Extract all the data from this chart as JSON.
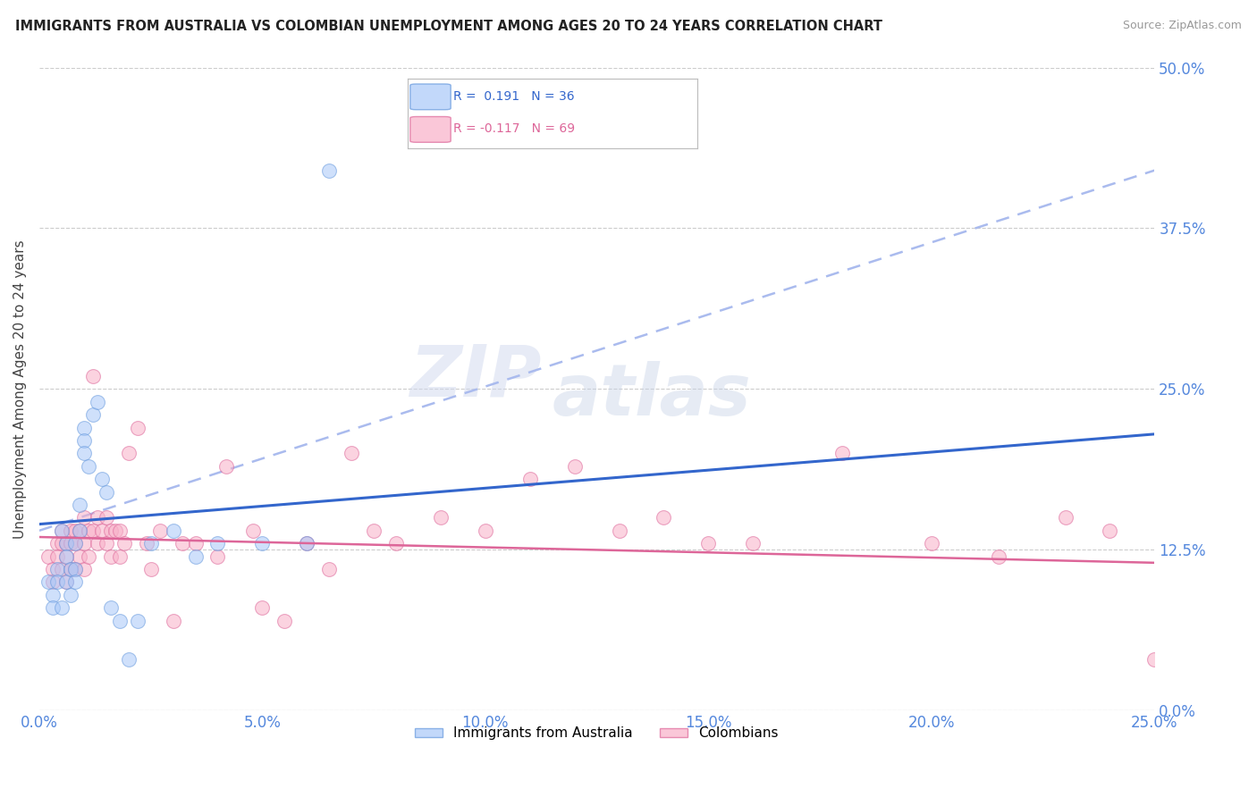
{
  "title": "IMMIGRANTS FROM AUSTRALIA VS COLOMBIAN UNEMPLOYMENT AMONG AGES 20 TO 24 YEARS CORRELATION CHART",
  "source": "Source: ZipAtlas.com",
  "ylabel": "Unemployment Among Ages 20 to 24 years",
  "xlim": [
    0.0,
    0.25
  ],
  "ylim": [
    0.0,
    0.5
  ],
  "watermark": "ZIPatlas",
  "blue_color": "#a8c8f8",
  "blue_color_edge": "#6699dd",
  "pink_color": "#f8b0c8",
  "pink_color_edge": "#dd6699",
  "trendline_blue_color": "#3366cc",
  "trendline_pink_color": "#dd6699",
  "trendline_dashed_color": "#aabbee",
  "axis_tick_color": "#5588dd",
  "grid_color": "#cccccc",
  "background_color": "#ffffff",
  "blue_trendline_x0": 0.0,
  "blue_trendline_y0": 0.145,
  "blue_trendline_x1": 0.25,
  "blue_trendline_y1": 0.215,
  "pink_trendline_x0": 0.0,
  "pink_trendline_y0": 0.135,
  "pink_trendline_x1": 0.25,
  "pink_trendline_y1": 0.115,
  "dashed_trendline_x0": 0.0,
  "dashed_trendline_y0": 0.14,
  "dashed_trendline_x1": 0.25,
  "dashed_trendline_y1": 0.42,
  "australia_scatter_x": [
    0.002,
    0.003,
    0.003,
    0.004,
    0.004,
    0.005,
    0.005,
    0.006,
    0.006,
    0.006,
    0.007,
    0.007,
    0.008,
    0.008,
    0.008,
    0.009,
    0.009,
    0.01,
    0.01,
    0.01,
    0.011,
    0.012,
    0.013,
    0.014,
    0.015,
    0.016,
    0.018,
    0.02,
    0.022,
    0.025,
    0.03,
    0.035,
    0.04,
    0.05,
    0.06,
    0.065
  ],
  "australia_scatter_y": [
    0.1,
    0.09,
    0.08,
    0.11,
    0.1,
    0.14,
    0.08,
    0.13,
    0.12,
    0.1,
    0.11,
    0.09,
    0.13,
    0.11,
    0.1,
    0.14,
    0.16,
    0.22,
    0.21,
    0.2,
    0.19,
    0.23,
    0.24,
    0.18,
    0.17,
    0.08,
    0.07,
    0.04,
    0.07,
    0.13,
    0.14,
    0.12,
    0.13,
    0.13,
    0.13,
    0.42
  ],
  "colombia_scatter_x": [
    0.002,
    0.003,
    0.003,
    0.004,
    0.004,
    0.005,
    0.005,
    0.005,
    0.006,
    0.006,
    0.006,
    0.007,
    0.007,
    0.007,
    0.008,
    0.008,
    0.008,
    0.009,
    0.009,
    0.01,
    0.01,
    0.01,
    0.011,
    0.011,
    0.012,
    0.012,
    0.013,
    0.013,
    0.014,
    0.015,
    0.015,
    0.016,
    0.016,
    0.017,
    0.018,
    0.018,
    0.019,
    0.02,
    0.022,
    0.024,
    0.025,
    0.027,
    0.03,
    0.032,
    0.035,
    0.04,
    0.042,
    0.048,
    0.05,
    0.055,
    0.06,
    0.065,
    0.07,
    0.075,
    0.08,
    0.09,
    0.1,
    0.11,
    0.12,
    0.13,
    0.14,
    0.15,
    0.16,
    0.18,
    0.2,
    0.215,
    0.23,
    0.24,
    0.25
  ],
  "colombia_scatter_y": [
    0.12,
    0.11,
    0.1,
    0.13,
    0.12,
    0.14,
    0.13,
    0.11,
    0.13,
    0.12,
    0.1,
    0.14,
    0.13,
    0.11,
    0.14,
    0.13,
    0.11,
    0.14,
    0.12,
    0.15,
    0.13,
    0.11,
    0.14,
    0.12,
    0.26,
    0.14,
    0.15,
    0.13,
    0.14,
    0.15,
    0.13,
    0.14,
    0.12,
    0.14,
    0.14,
    0.12,
    0.13,
    0.2,
    0.22,
    0.13,
    0.11,
    0.14,
    0.07,
    0.13,
    0.13,
    0.12,
    0.19,
    0.14,
    0.08,
    0.07,
    0.13,
    0.11,
    0.2,
    0.14,
    0.13,
    0.15,
    0.14,
    0.18,
    0.19,
    0.14,
    0.15,
    0.13,
    0.13,
    0.2,
    0.13,
    0.12,
    0.15,
    0.14,
    0.04
  ]
}
